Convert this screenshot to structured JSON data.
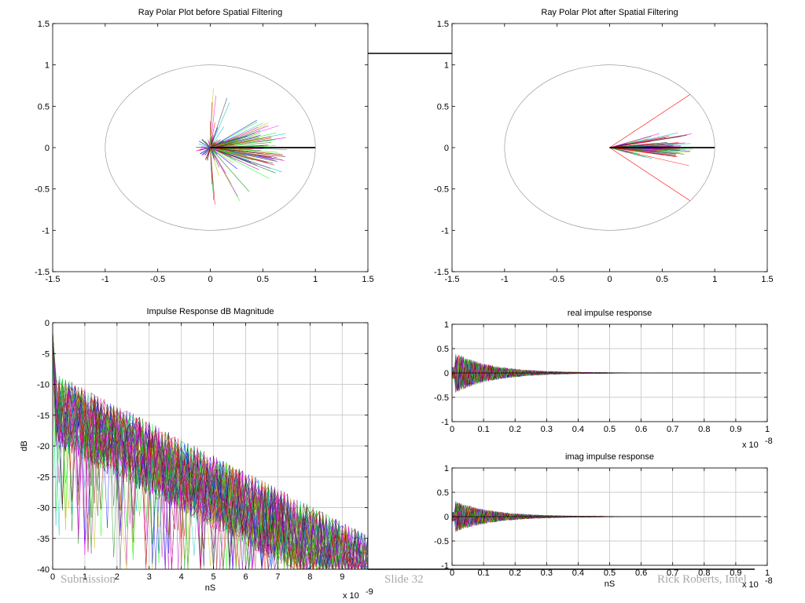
{
  "footer": {
    "left": "Submission",
    "center": "Slide 32",
    "right": "Rick Roberts, Intel"
  },
  "chart_data": [
    {
      "type": "scatter",
      "title": "Ray Polar Plot before Spatial Filtering",
      "xlabel": "",
      "ylabel": "",
      "xlim": [
        -1.5,
        1.5
      ],
      "ylim": [
        -1.5,
        1.5
      ],
      "xticks": [
        -1.5,
        -1,
        -0.5,
        0,
        0.5,
        1,
        1.5
      ],
      "yticks": [
        -1.5,
        -1,
        -0.5,
        0,
        0.5,
        1,
        1.5
      ],
      "xtick_labels": [
        "-1.5",
        "-1",
        "-0.5",
        "0",
        "0.5",
        "1",
        "1.5"
      ],
      "ytick_labels": [
        "-1.5",
        "-1",
        "-0.5",
        "0",
        "0.5",
        "1",
        "1.5"
      ],
      "grid": false,
      "circle_radius": 1,
      "rays": {
        "count": 260,
        "angle_spread_deg": 180,
        "max_length": 1.0,
        "dominant_ray": [
          1.0,
          0.0
        ]
      }
    },
    {
      "type": "scatter",
      "title": "Ray Polar Plot after Spatial Filtering",
      "xlabel": "",
      "ylabel": "",
      "xlim": [
        -1.5,
        1.5
      ],
      "ylim": [
        -1.5,
        1.5
      ],
      "xticks": [
        -1.5,
        -1,
        -0.5,
        0,
        0.5,
        1,
        1.5
      ],
      "yticks": [
        -1.5,
        -1,
        -0.5,
        0,
        0.5,
        1,
        1.5
      ],
      "xtick_labels": [
        "-1.5",
        "-1",
        "-0.5",
        "0",
        "0.5",
        "1",
        "1.5"
      ],
      "ytick_labels": [
        "-1.5",
        "-1",
        "-0.5",
        "0",
        "0.5",
        "1",
        "1.5"
      ],
      "grid": false,
      "circle_radius": 1,
      "beam_edges_deg": [
        40,
        -40
      ],
      "beam_edge_color": "#ff0000",
      "rays": {
        "count": 220,
        "angle_spread_deg": 40,
        "max_length": 1.0,
        "dominant_ray": [
          1.0,
          0.0
        ]
      }
    },
    {
      "type": "line",
      "title": "Impulse Response dB Magnitude",
      "xlabel": "nS",
      "ylabel": "dB",
      "x_multiplier": "x 10",
      "x_exponent": "-9",
      "xlim": [
        0,
        9.8
      ],
      "ylim": [
        -40,
        0
      ],
      "xticks": [
        0,
        1,
        2,
        3,
        4,
        5,
        6,
        7,
        8,
        9
      ],
      "yticks": [
        -40,
        -35,
        -30,
        -25,
        -20,
        -15,
        -10,
        -5,
        0
      ],
      "xtick_labels": [
        "0",
        "1",
        "2",
        "3",
        "4",
        "5",
        "6",
        "7",
        "8",
        "9"
      ],
      "ytick_labels": [
        "-40",
        "-35",
        "-30",
        "-25",
        "-20",
        "-15",
        "-10",
        "-5",
        "0"
      ],
      "grid": true,
      "series_count": 60,
      "envelope": {
        "start_db": -14,
        "slope_db_per_ns": -2.7,
        "floor_db": -40
      }
    },
    {
      "type": "line",
      "title": "real impulse response",
      "xlabel": "",
      "ylabel": "",
      "x_multiplier": "x 10",
      "x_exponent": "-8",
      "xlim": [
        0,
        1
      ],
      "ylim": [
        -1,
        1
      ],
      "xticks": [
        0,
        0.1,
        0.2,
        0.3,
        0.4,
        0.5,
        0.6,
        0.7,
        0.8,
        0.9,
        1
      ],
      "yticks": [
        -1,
        -0.5,
        0,
        0.5,
        1
      ],
      "xtick_labels": [
        "0",
        "0.1",
        "0.2",
        "0.3",
        "0.4",
        "0.5",
        "0.6",
        "0.7",
        "0.8",
        "0.9",
        "1"
      ],
      "ytick_labels": [
        "-1",
        "-0.5",
        "0",
        "0.5",
        "1"
      ],
      "grid": true,
      "series_count": 60,
      "data_end_x": 0.98,
      "envelope": {
        "peak": 0.45,
        "decay_tau": 0.12
      }
    },
    {
      "type": "line",
      "title": "imag impulse response",
      "xlabel": "nS",
      "ylabel": "",
      "x_multiplier": "x 10",
      "x_exponent": "-8",
      "xlim": [
        0,
        1
      ],
      "ylim": [
        -1,
        1
      ],
      "xticks": [
        0,
        0.1,
        0.2,
        0.3,
        0.4,
        0.5,
        0.6,
        0.7,
        0.8,
        0.9,
        1
      ],
      "yticks": [
        -1,
        -0.5,
        0,
        0.5,
        1
      ],
      "xtick_labels": [
        "0",
        "0.1",
        "0.2",
        "0.3",
        "0.4",
        "0.5",
        "0.6",
        "0.7",
        "0.8",
        "0.9",
        "1"
      ],
      "ytick_labels": [
        "-1",
        "-0.5",
        "0",
        "0.5",
        "1"
      ],
      "grid": true,
      "series_count": 60,
      "data_end_x": 0.98,
      "envelope": {
        "peak": 0.35,
        "decay_tau": 0.12
      }
    }
  ]
}
